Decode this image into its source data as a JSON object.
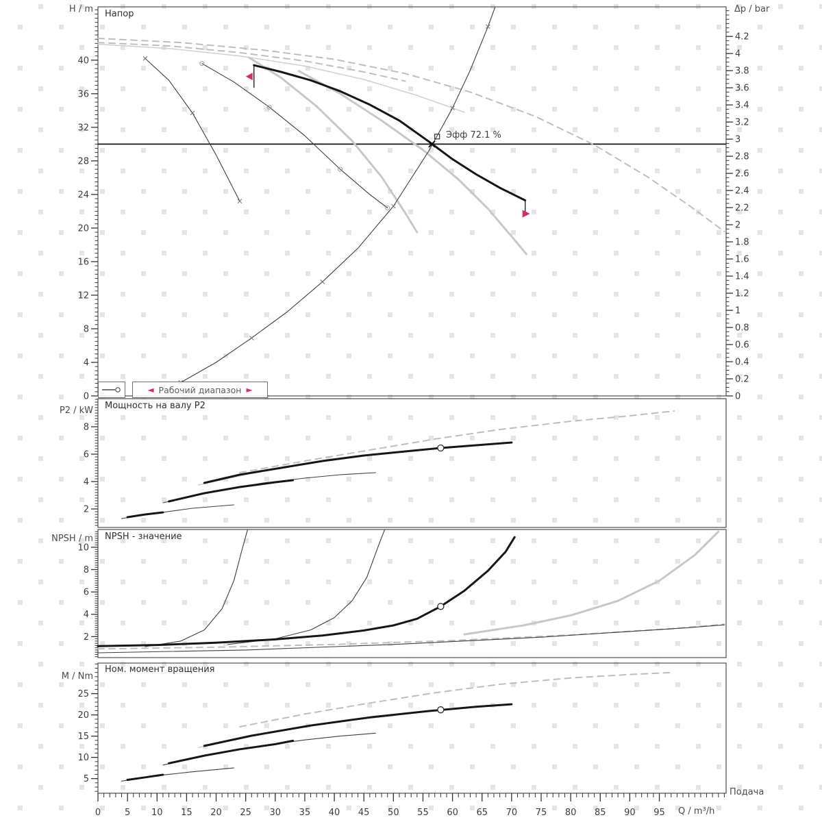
{
  "colors": {
    "background": "#ffffff",
    "frame": "#4d4d4d",
    "tick": "#333333",
    "text": "#3b3b3b",
    "watermark": "#e4e4e4",
    "curve_bold": "#161616",
    "curve_thin": "#3d3d3d",
    "curve_light": "#c7c7c7",
    "curve_lightthin": "#cfcfcf",
    "curve_dashed": "#bdbdbd",
    "duty_line": "#111111",
    "range_red": "#cf2f66"
  },
  "legend": {
    "series_symbol": "— o",
    "working_range_label": "Рабочий диапазон",
    "arrow_left": "◄",
    "arrow_right": "►"
  },
  "operating_point": {
    "label": "Эфф  72.1 %",
    "q": 56.5,
    "h": 30,
    "square_q": 57.4,
    "square_h": 30.9
  },
  "working_range": {
    "q_min": 26.4,
    "q_max": 72.3,
    "h_at_min": 39.4,
    "h_at_max": 23.3
  },
  "x_axis": {
    "unit_label": "Q / m³/h",
    "flow_label": "Подача",
    "major_ticks": [
      0,
      5,
      10,
      15,
      20,
      25,
      30,
      35,
      40,
      45,
      50,
      55,
      60,
      65,
      70,
      75,
      80,
      85,
      90,
      95
    ],
    "minor_step": 1,
    "max": 106.3
  },
  "chart_data": [
    {
      "type": "line",
      "title": "Напор",
      "ylabel": "H / m",
      "ylabel_right": "Δp / bar",
      "ylim": [
        0,
        46.35
      ],
      "yticks": [
        0,
        4,
        8,
        12,
        16,
        20,
        24,
        28,
        32,
        36,
        40
      ],
      "yminor": 0.5,
      "yticks_right": [
        0,
        0.2,
        0.4,
        0.6,
        0.8,
        1,
        1.2,
        1.4,
        1.6,
        1.8,
        2,
        2.2,
        2.4,
        2.6,
        2.8,
        3,
        3.2,
        3.4,
        3.6,
        3.8,
        4,
        4.2
      ],
      "yminor_right": 0.05,
      "duty_head": 30,
      "series": [
        {
          "name": "max-speed-dashed-a",
          "style": "dashed",
          "points": [
            [
              0,
              42.6
            ],
            [
              14,
              42.1
            ],
            [
              28,
              41.2
            ],
            [
              40,
              40.1
            ],
            [
              52,
              38.4
            ],
            [
              63,
              36.2
            ],
            [
              74,
              33.3
            ],
            [
              84,
              29.9
            ],
            [
              93,
              26.1
            ],
            [
              100,
              22.7
            ],
            [
              106,
              19.6
            ]
          ]
        },
        {
          "name": "gray-speed-a",
          "style": "lightthin",
          "points": [
            [
              0,
              41.9
            ],
            [
              12,
              41.4
            ],
            [
              24,
              40.5
            ],
            [
              35,
              39.3
            ],
            [
              45,
              37.7
            ],
            [
              54,
              35.8
            ],
            [
              62,
              33.8
            ]
          ]
        },
        {
          "name": "max-speed-dashed-b",
          "style": "dashed",
          "points": [
            [
              0,
              42.1
            ],
            [
              12,
              41.7
            ],
            [
              24,
              40.9
            ],
            [
              35,
              39.9
            ],
            [
              45,
              38.6
            ],
            [
              52,
              37.5
            ]
          ]
        },
        {
          "name": "steep-curve-1",
          "style": "thin",
          "markers": "x",
          "points": [
            [
              8,
              40.2
            ],
            [
              12,
              37.6
            ],
            [
              16,
              33.7
            ],
            [
              20,
              28.7
            ],
            [
              24,
              23.2
            ]
          ]
        },
        {
          "name": "steep-curve-2",
          "style": "thin",
          "markers": "o",
          "points": [
            [
              17.6,
              39.6
            ],
            [
              23,
              37.4
            ],
            [
              29,
              34.4
            ],
            [
              35,
              31
            ],
            [
              41,
              27
            ],
            [
              46,
              24
            ],
            [
              49,
              22.4
            ]
          ]
        },
        {
          "name": "band-curve-1",
          "style": "light",
          "points": [
            [
              25.6,
              40.3
            ],
            [
              31,
              37.9
            ],
            [
              37,
              34.5
            ],
            [
              43,
              30.4
            ],
            [
              48,
              26.1
            ],
            [
              52,
              21.8
            ],
            [
              54,
              19.5
            ]
          ]
        },
        {
          "name": "band-curve-2",
          "style": "light",
          "points": [
            [
              34,
              38.7
            ],
            [
              41,
              36
            ],
            [
              48,
              32.8
            ],
            [
              55,
              29.3
            ],
            [
              61,
              25.8
            ],
            [
              66,
              22.3
            ],
            [
              70,
              19
            ],
            [
              72.5,
              16.9
            ]
          ]
        },
        {
          "name": "selected-head-curve",
          "style": "bold",
          "points": [
            [
              26.4,
              39.4
            ],
            [
              31,
              38.6
            ],
            [
              36,
              37.6
            ],
            [
              41,
              36.3
            ],
            [
              46,
              34.7
            ],
            [
              51,
              32.8
            ],
            [
              56,
              30.3
            ],
            [
              60,
              28.2
            ],
            [
              64,
              26.4
            ],
            [
              68,
              24.8
            ],
            [
              72.3,
              23.3
            ]
          ]
        },
        {
          "name": "efficiency-curve",
          "style": "thin",
          "markers": "x",
          "points": [
            [
              14,
              1.6
            ],
            [
              20,
              4
            ],
            [
              26,
              6.9
            ],
            [
              32,
              10
            ],
            [
              38,
              13.6
            ],
            [
              44,
              17.6
            ],
            [
              50,
              22.6
            ],
            [
              56,
              29.2
            ],
            [
              60,
              34.3
            ],
            [
              63,
              38.8
            ],
            [
              66,
              44
            ],
            [
              67.2,
              46.3
            ]
          ]
        }
      ]
    },
    {
      "type": "line",
      "title": "Мощность на валу P2",
      "ylabel": "P2 / kW",
      "ylim": [
        0.65,
        10.05
      ],
      "yticks": [
        2,
        4,
        6,
        8
      ],
      "yminor": 0.2,
      "marker_point": [
        58,
        6.45
      ],
      "series": [
        {
          "name": "power-dashed",
          "style": "dashed",
          "points": [
            [
              24,
              4.65
            ],
            [
              35,
              5.5
            ],
            [
              46,
              6.3
            ],
            [
              57,
              7.1
            ],
            [
              68,
              7.8
            ],
            [
              80,
              8.4
            ],
            [
              90,
              8.8
            ],
            [
              97.5,
              9.15
            ]
          ]
        },
        {
          "name": "power-3-thin",
          "style": "lightthin",
          "points": [
            [
              17,
              3.75
            ],
            [
              26,
              4.6
            ],
            [
              36,
              5.35
            ],
            [
              46,
              5.95
            ],
            [
              52,
              6.2
            ]
          ]
        },
        {
          "name": "power-3-bold",
          "style": "bold",
          "points": [
            [
              18,
              3.9
            ],
            [
              24,
              4.5
            ],
            [
              31,
              5
            ],
            [
              38,
              5.5
            ],
            [
              45,
              5.9
            ],
            [
              52,
              6.2
            ],
            [
              58,
              6.45
            ],
            [
              64,
              6.65
            ],
            [
              70,
              6.85
            ]
          ]
        },
        {
          "name": "power-2-thin",
          "style": "thin",
          "points": [
            [
              11,
              2.45
            ],
            [
              20,
              3.3
            ],
            [
              28,
              3.9
            ],
            [
              35,
              4.25
            ],
            [
              41,
              4.5
            ],
            [
              47,
              4.65
            ]
          ]
        },
        {
          "name": "power-2-bold",
          "style": "bold",
          "points": [
            [
              12,
              2.55
            ],
            [
              18,
              3.15
            ],
            [
              24,
              3.6
            ],
            [
              30,
              3.95
            ],
            [
              33,
              4.1
            ]
          ]
        },
        {
          "name": "power-1-thin",
          "style": "thin",
          "points": [
            [
              4,
              1.3
            ],
            [
              10,
              1.7
            ],
            [
              16,
              2.05
            ],
            [
              23,
              2.3
            ]
          ]
        },
        {
          "name": "power-1-bold",
          "style": "bold",
          "points": [
            [
              5,
              1.4
            ],
            [
              8,
              1.6
            ],
            [
              11,
              1.75
            ]
          ]
        }
      ]
    },
    {
      "type": "line",
      "title": "NPSH - значение",
      "ylabel": "NPSH / m",
      "ylim": [
        0.12,
        11.59
      ],
      "yticks": [
        2,
        4,
        6,
        8,
        10
      ],
      "yminor": 0.2,
      "marker_point": [
        58,
        4.7
      ],
      "series": [
        {
          "name": "npsh-dashed",
          "style": "dashed",
          "points": [
            [
              0,
              0.9
            ],
            [
              20,
              1.05
            ],
            [
              40,
              1.3
            ],
            [
              60,
              1.65
            ],
            [
              80,
              2.15
            ],
            [
              97,
              2.7
            ],
            [
              106,
              3.1
            ]
          ]
        },
        {
          "name": "npsh-low-thin",
          "style": "thin",
          "points": [
            [
              0,
              0.55
            ],
            [
              25,
              0.8
            ],
            [
              50,
              1.3
            ],
            [
              75,
              1.95
            ],
            [
              100,
              2.8
            ],
            [
              106,
              3.05
            ]
          ]
        },
        {
          "name": "npsh-gray-right",
          "style": "light",
          "points": [
            [
              62,
              2.2
            ],
            [
              72,
              3
            ],
            [
              80,
              3.9
            ],
            [
              88,
              5.2
            ],
            [
              95,
              7
            ],
            [
              101,
              9.3
            ],
            [
              105,
              11.4
            ]
          ]
        },
        {
          "name": "npsh-thin-1",
          "style": "thin",
          "points": [
            [
              8,
              1.1
            ],
            [
              14,
              1.6
            ],
            [
              18,
              2.6
            ],
            [
              21,
              4.5
            ],
            [
              23,
              7
            ],
            [
              24.5,
              10
            ],
            [
              25.3,
              11.55
            ]
          ]
        },
        {
          "name": "npsh-thin-2",
          "style": "thin",
          "points": [
            [
              22,
              1.3
            ],
            [
              30,
              1.8
            ],
            [
              36,
              2.6
            ],
            [
              40,
              3.7
            ],
            [
              43,
              5.2
            ],
            [
              45.5,
              7.3
            ],
            [
              47.5,
              10.2
            ],
            [
              48.5,
              11.55
            ]
          ]
        },
        {
          "name": "npsh-selected-bold",
          "style": "bold",
          "points": [
            [
              0,
              1.15
            ],
            [
              10,
              1.25
            ],
            [
              20,
              1.45
            ],
            [
              30,
              1.75
            ],
            [
              38,
              2.1
            ],
            [
              45,
              2.55
            ],
            [
              50,
              3
            ],
            [
              54,
              3.6
            ],
            [
              58,
              4.7
            ],
            [
              62,
              6.1
            ],
            [
              66,
              7.9
            ],
            [
              69,
              9.6
            ],
            [
              70.5,
              10.9
            ]
          ]
        }
      ]
    },
    {
      "type": "line",
      "title": "Ном. момент вращения",
      "ylabel": "M / Nm",
      "ylim": [
        1.55,
        32.2
      ],
      "yticks": [
        5,
        10,
        15,
        20,
        25
      ],
      "yminor": 1,
      "marker_point": [
        58,
        21.2
      ],
      "series": [
        {
          "name": "torque-dashed",
          "style": "dashed",
          "points": [
            [
              24,
              17.2
            ],
            [
              35,
              20.2
            ],
            [
              46,
              22.8
            ],
            [
              57,
              25.2
            ],
            [
              68,
              27.2
            ],
            [
              80,
              28.7
            ],
            [
              90,
              29.5
            ],
            [
              97.5,
              30
            ]
          ]
        },
        {
          "name": "torque-3-thin",
          "style": "lightthin",
          "points": [
            [
              17,
              12.3
            ],
            [
              26,
              15
            ],
            [
              36,
              17.4
            ],
            [
              44,
              18.9
            ],
            [
              50,
              19.8
            ]
          ]
        },
        {
          "name": "torque-3-bold",
          "style": "bold",
          "points": [
            [
              18,
              12.7
            ],
            [
              26,
              15.1
            ],
            [
              36,
              17.5
            ],
            [
              46,
              19.4
            ],
            [
              56,
              20.9
            ],
            [
              64,
              21.9
            ],
            [
              70,
              22.5
            ]
          ]
        },
        {
          "name": "torque-2-thin",
          "style": "thin",
          "points": [
            [
              11,
              8.2
            ],
            [
              20,
              10.9
            ],
            [
              28,
              12.8
            ],
            [
              35,
              14.1
            ],
            [
              41,
              15
            ],
            [
              47,
              15.7
            ]
          ]
        },
        {
          "name": "torque-2-bold",
          "style": "bold",
          "points": [
            [
              12,
              8.6
            ],
            [
              18,
              10.4
            ],
            [
              24,
              11.9
            ],
            [
              30,
              13.1
            ],
            [
              33,
              13.9
            ]
          ]
        },
        {
          "name": "torque-1-thin",
          "style": "thin",
          "points": [
            [
              4,
              4.4
            ],
            [
              10,
              5.7
            ],
            [
              16,
              6.6
            ],
            [
              23,
              7.5
            ]
          ]
        },
        {
          "name": "torque-1-bold",
          "style": "bold",
          "points": [
            [
              5,
              4.7
            ],
            [
              8,
              5.3
            ],
            [
              11,
              5.9
            ]
          ]
        }
      ]
    }
  ]
}
